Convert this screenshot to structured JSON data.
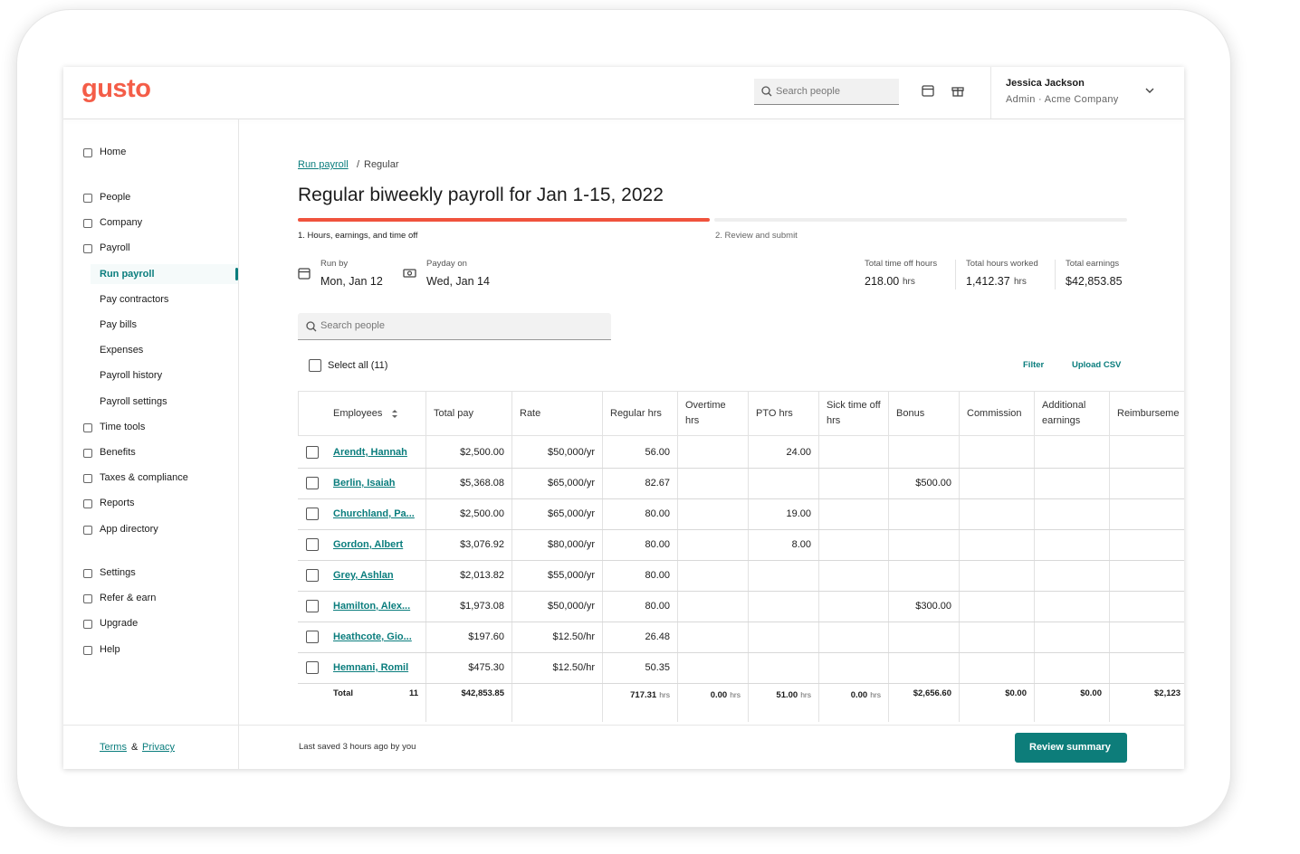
{
  "header": {
    "logo": "gusto",
    "search": "Search people",
    "user": {
      "name": "Jessica Jackson",
      "role": "Admin · Acme Company"
    }
  },
  "sidebar": {
    "groups": [
      [
        {
          "label": "Home"
        }
      ],
      [
        {
          "label": "People"
        },
        {
          "label": "Company"
        },
        {
          "label": "Payroll",
          "children": [
            {
              "label": "Run payroll",
              "active": true
            },
            {
              "label": "Pay contractors"
            },
            {
              "label": "Pay bills"
            },
            {
              "label": "Expenses"
            },
            {
              "label": "Payroll history"
            },
            {
              "label": "Payroll settings"
            }
          ]
        },
        {
          "label": "Time tools"
        },
        {
          "label": "Benefits"
        },
        {
          "label": "Taxes & compliance"
        },
        {
          "label": "Reports"
        },
        {
          "label": "App directory"
        }
      ],
      [
        {
          "label": "Settings"
        },
        {
          "label": "Refer & earn"
        },
        {
          "label": "Upgrade"
        },
        {
          "label": "Help"
        }
      ]
    ],
    "footer": {
      "terms": "Terms",
      "separator": "&",
      "privacy": "Privacy"
    }
  },
  "breadcrumb": {
    "link": "Run payroll",
    "separator": "/",
    "current": "Regular"
  },
  "title": "Regular biweekly payroll for Jan 1-15, 2022",
  "steps": [
    {
      "label": "1. Hours, earnings, and time off",
      "active": true
    },
    {
      "label": "2. Review and submit"
    }
  ],
  "dates": [
    {
      "label": "Run by",
      "value": "Mon, Jan 12"
    },
    {
      "label": "Payday on",
      "value": "Wed, Jan 14"
    }
  ],
  "totals": [
    {
      "label": "Total time off hours",
      "value": "218.00",
      "unit": "hrs"
    },
    {
      "label": "Total hours worked",
      "value": "1,412.37",
      "unit": "hrs"
    },
    {
      "label": "Total earnings",
      "value": "$42,853.85"
    }
  ],
  "search": "Search people",
  "select_all": "Select all (11)",
  "actions": [
    "Filter",
    "Upload CSV"
  ],
  "table": {
    "columns": [
      "Employees",
      "Total pay",
      "Rate",
      "Regular hrs",
      "Overtime hrs",
      "PTO hrs",
      "Sick time off hrs",
      "Bonus",
      "Commission",
      "Additional earnings",
      "Reimburseme"
    ],
    "rows": [
      [
        "Arendt, Hannah",
        "$2,500.00",
        "$50,000/yr",
        "56.00",
        null,
        "24.00",
        null,
        null,
        null,
        null,
        null
      ],
      [
        "Berlin, Isaiah",
        "$5,368.08",
        "$65,000/yr",
        "82.67",
        null,
        null,
        null,
        "$500.00",
        null,
        null,
        null
      ],
      [
        "Churchland, Pa...",
        "$2,500.00",
        "$65,000/yr",
        "80.00",
        null,
        "19.00",
        null,
        null,
        null,
        null,
        null
      ],
      [
        "Gordon, Albert",
        "$3,076.92",
        "$80,000/yr",
        "80.00",
        null,
        "8.00",
        null,
        null,
        null,
        null,
        null
      ],
      [
        "Grey, Ashlan",
        "$2,013.82",
        "$55,000/yr",
        "80.00",
        null,
        null,
        null,
        null,
        null,
        null,
        null
      ],
      [
        "Hamilton, Alex...",
        "$1,973.08",
        "$50,000/yr",
        "80.00",
        null,
        null,
        null,
        "$300.00",
        null,
        null,
        null
      ],
      [
        "Heathcote, Gio...",
        "$197.60",
        "$12.50/hr",
        "26.48",
        null,
        null,
        null,
        null,
        null,
        null,
        null
      ],
      [
        "Hemnani, Romil",
        "$475.30",
        "$12.50/hr",
        "50.35",
        null,
        null,
        null,
        null,
        null,
        null,
        null
      ]
    ],
    "total": [
      {
        "label": "Total",
        "count": "11"
      },
      "$42,853.85",
      null,
      {
        "value": "717.31",
        "unit": "hrs"
      },
      {
        "value": "0.00",
        "unit": "hrs"
      },
      {
        "value": "51.00",
        "unit": "hrs"
      },
      {
        "value": "0.00",
        "unit": "hrs"
      },
      "$2,656.60",
      "$0.00",
      "$0.00",
      "$2,123"
    ]
  },
  "footer": {
    "last_saved": "Last saved 3 hours ago by you",
    "button": "Review summary"
  }
}
